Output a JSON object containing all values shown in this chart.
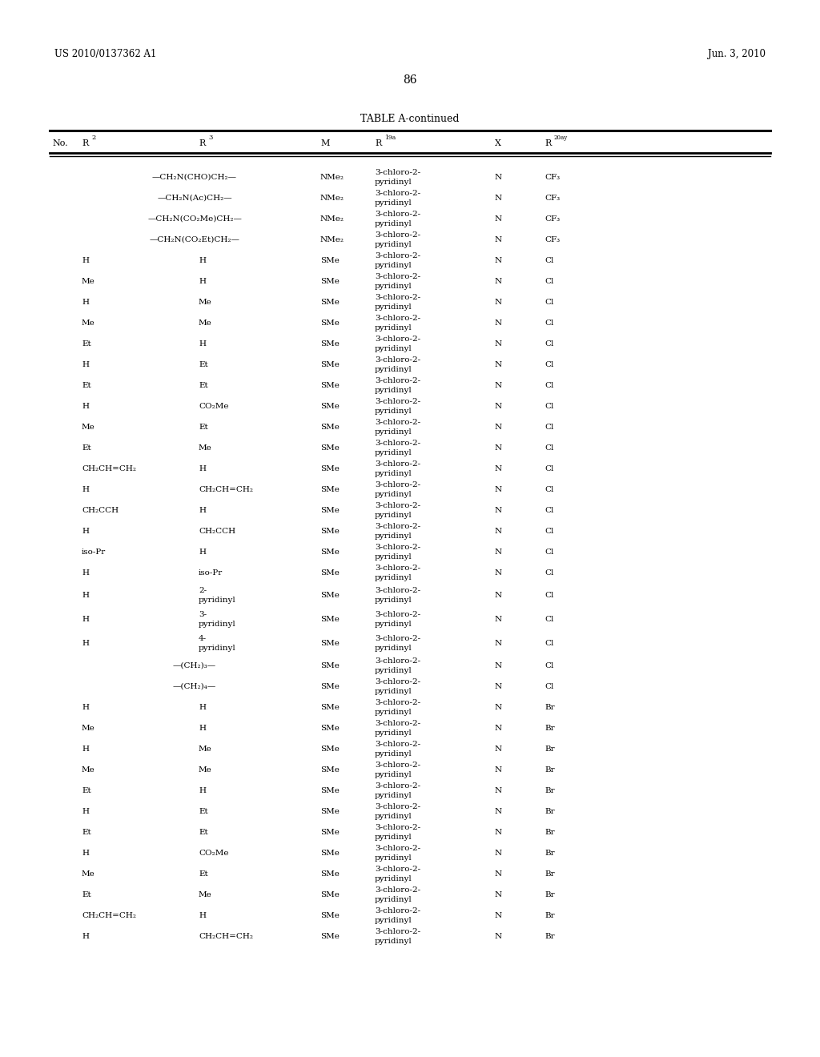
{
  "title": "TABLE A-continued",
  "page_number": "86",
  "patent_left": "US 2010/0137362 A1",
  "patent_right": "Jun. 3, 2010",
  "background_color": "#ffffff",
  "text_color": "#000000",
  "rows": [
    {
      "no": "",
      "r2": "—CH₂N(CHO)CH₂—",
      "r3": "",
      "m": "NMe₂",
      "r19a": "3-chloro-2-\npyridinyl",
      "x": "N",
      "r20ay": "CF₃",
      "linked": true
    },
    {
      "no": "",
      "r2": "—CH₂N(Ac)CH₂—",
      "r3": "",
      "m": "NMe₂",
      "r19a": "3-chloro-2-\npyridinyl",
      "x": "N",
      "r20ay": "CF₃",
      "linked": true
    },
    {
      "no": "",
      "r2": "—CH₂N(CO₂Me)CH₂—",
      "r3": "",
      "m": "NMe₂",
      "r19a": "3-chloro-2-\npyridinyl",
      "x": "N",
      "r20ay": "CF₃",
      "linked": true
    },
    {
      "no": "",
      "r2": "—CH₂N(CO₂Et)CH₂—",
      "r3": "",
      "m": "NMe₂",
      "r19a": "3-chloro-2-\npyridinyl",
      "x": "N",
      "r20ay": "CF₃",
      "linked": true
    },
    {
      "no": "",
      "r2": "H",
      "r3": "H",
      "m": "SMe",
      "r19a": "3-chloro-2-\npyridinyl",
      "x": "N",
      "r20ay": "Cl",
      "linked": false
    },
    {
      "no": "",
      "r2": "Me",
      "r3": "H",
      "m": "SMe",
      "r19a": "3-chloro-2-\npyridinyl",
      "x": "N",
      "r20ay": "Cl",
      "linked": false
    },
    {
      "no": "",
      "r2": "H",
      "r3": "Me",
      "m": "SMe",
      "r19a": "3-chloro-2-\npyridinyl",
      "x": "N",
      "r20ay": "Cl",
      "linked": false
    },
    {
      "no": "",
      "r2": "Me",
      "r3": "Me",
      "m": "SMe",
      "r19a": "3-chloro-2-\npyridinyl",
      "x": "N",
      "r20ay": "Cl",
      "linked": false
    },
    {
      "no": "",
      "r2": "Et",
      "r3": "H",
      "m": "SMe",
      "r19a": "3-chloro-2-\npyridinyl",
      "x": "N",
      "r20ay": "Cl",
      "linked": false
    },
    {
      "no": "",
      "r2": "H",
      "r3": "Et",
      "m": "SMe",
      "r19a": "3-chloro-2-\npyridinyl",
      "x": "N",
      "r20ay": "Cl",
      "linked": false
    },
    {
      "no": "",
      "r2": "Et",
      "r3": "Et",
      "m": "SMe",
      "r19a": "3-chloro-2-\npyridinyl",
      "x": "N",
      "r20ay": "Cl",
      "linked": false
    },
    {
      "no": "",
      "r2": "H",
      "r3": "CO₂Me",
      "m": "SMe",
      "r19a": "3-chloro-2-\npyridinyl",
      "x": "N",
      "r20ay": "Cl",
      "linked": false
    },
    {
      "no": "",
      "r2": "Me",
      "r3": "Et",
      "m": "SMe",
      "r19a": "3-chloro-2-\npyridinyl",
      "x": "N",
      "r20ay": "Cl",
      "linked": false
    },
    {
      "no": "",
      "r2": "Et",
      "r3": "Me",
      "m": "SMe",
      "r19a": "3-chloro-2-\npyridinyl",
      "x": "N",
      "r20ay": "Cl",
      "linked": false
    },
    {
      "no": "",
      "r2": "CH₂CH=CH₂",
      "r3": "H",
      "m": "SMe",
      "r19a": "3-chloro-2-\npyridinyl",
      "x": "N",
      "r20ay": "Cl",
      "linked": false
    },
    {
      "no": "",
      "r2": "H",
      "r3": "CH₂CH=CH₂",
      "m": "SMe",
      "r19a": "3-chloro-2-\npyridinyl",
      "x": "N",
      "r20ay": "Cl",
      "linked": false
    },
    {
      "no": "",
      "r2": "CH₂CCH",
      "r3": "H",
      "m": "SMe",
      "r19a": "3-chloro-2-\npyridinyl",
      "x": "N",
      "r20ay": "Cl",
      "linked": false
    },
    {
      "no": "",
      "r2": "H",
      "r3": "CH₂CCH",
      "m": "SMe",
      "r19a": "3-chloro-2-\npyridinyl",
      "x": "N",
      "r20ay": "Cl",
      "linked": false
    },
    {
      "no": "",
      "r2": "iso-Pr",
      "r3": "H",
      "m": "SMe",
      "r19a": "3-chloro-2-\npyridinyl",
      "x": "N",
      "r20ay": "Cl",
      "linked": false
    },
    {
      "no": "",
      "r2": "H",
      "r3": "iso-Pr",
      "m": "SMe",
      "r19a": "3-chloro-2-\npyridinyl",
      "x": "N",
      "r20ay": "Cl",
      "linked": false
    },
    {
      "no": "",
      "r2": "H",
      "r3": "2-\npyridinyl",
      "m": "SMe",
      "r19a": "3-chloro-2-\npyridinyl",
      "x": "N",
      "r20ay": "Cl",
      "linked": false
    },
    {
      "no": "",
      "r2": "H",
      "r3": "3-\npyridinyl",
      "m": "SMe",
      "r19a": "3-chloro-2-\npyridinyl",
      "x": "N",
      "r20ay": "Cl",
      "linked": false
    },
    {
      "no": "",
      "r2": "H",
      "r3": "4-\npyridinyl",
      "m": "SMe",
      "r19a": "3-chloro-2-\npyridinyl",
      "x": "N",
      "r20ay": "Cl",
      "linked": false
    },
    {
      "no": "",
      "r2": "—(CH₂)₃—",
      "r3": "",
      "m": "SMe",
      "r19a": "3-chloro-2-\npyridinyl",
      "x": "N",
      "r20ay": "Cl",
      "linked": true
    },
    {
      "no": "",
      "r2": "—(CH₂)₄—",
      "r3": "",
      "m": "SMe",
      "r19a": "3-chloro-2-\npyridinyl",
      "x": "N",
      "r20ay": "Cl",
      "linked": true
    },
    {
      "no": "",
      "r2": "H",
      "r3": "H",
      "m": "SMe",
      "r19a": "3-chloro-2-\npyridinyl",
      "x": "N",
      "r20ay": "Br",
      "linked": false
    },
    {
      "no": "",
      "r2": "Me",
      "r3": "H",
      "m": "SMe",
      "r19a": "3-chloro-2-\npyridinyl",
      "x": "N",
      "r20ay": "Br",
      "linked": false
    },
    {
      "no": "",
      "r2": "H",
      "r3": "Me",
      "m": "SMe",
      "r19a": "3-chloro-2-\npyridinyl",
      "x": "N",
      "r20ay": "Br",
      "linked": false
    },
    {
      "no": "",
      "r2": "Me",
      "r3": "Me",
      "m": "SMe",
      "r19a": "3-chloro-2-\npyridinyl",
      "x": "N",
      "r20ay": "Br",
      "linked": false
    },
    {
      "no": "",
      "r2": "Et",
      "r3": "H",
      "m": "SMe",
      "r19a": "3-chloro-2-\npyridinyl",
      "x": "N",
      "r20ay": "Br",
      "linked": false
    },
    {
      "no": "",
      "r2": "H",
      "r3": "Et",
      "m": "SMe",
      "r19a": "3-chloro-2-\npyridinyl",
      "x": "N",
      "r20ay": "Br",
      "linked": false
    },
    {
      "no": "",
      "r2": "Et",
      "r3": "Et",
      "m": "SMe",
      "r19a": "3-chloro-2-\npyridinyl",
      "x": "N",
      "r20ay": "Br",
      "linked": false
    },
    {
      "no": "",
      "r2": "H",
      "r3": "CO₂Me",
      "m": "SMe",
      "r19a": "3-chloro-2-\npyridinyl",
      "x": "N",
      "r20ay": "Br",
      "linked": false
    },
    {
      "no": "",
      "r2": "Me",
      "r3": "Et",
      "m": "SMe",
      "r19a": "3-chloro-2-\npyridinyl",
      "x": "N",
      "r20ay": "Br",
      "linked": false
    },
    {
      "no": "",
      "r2": "Et",
      "r3": "Me",
      "m": "SMe",
      "r19a": "3-chloro-2-\npyridinyl",
      "x": "N",
      "r20ay": "Br",
      "linked": false
    },
    {
      "no": "",
      "r2": "CH₂CH=CH₂",
      "r3": "H",
      "m": "SMe",
      "r19a": "3-chloro-2-\npyridinyl",
      "x": "N",
      "r20ay": "Br",
      "linked": false
    },
    {
      "no": "",
      "r2": "H",
      "r3": "CH₂CH=CH₂",
      "m": "SMe",
      "r19a": "3-chloro-2-\npyridinyl",
      "x": "N",
      "r20ay": "Br",
      "linked": false
    }
  ]
}
